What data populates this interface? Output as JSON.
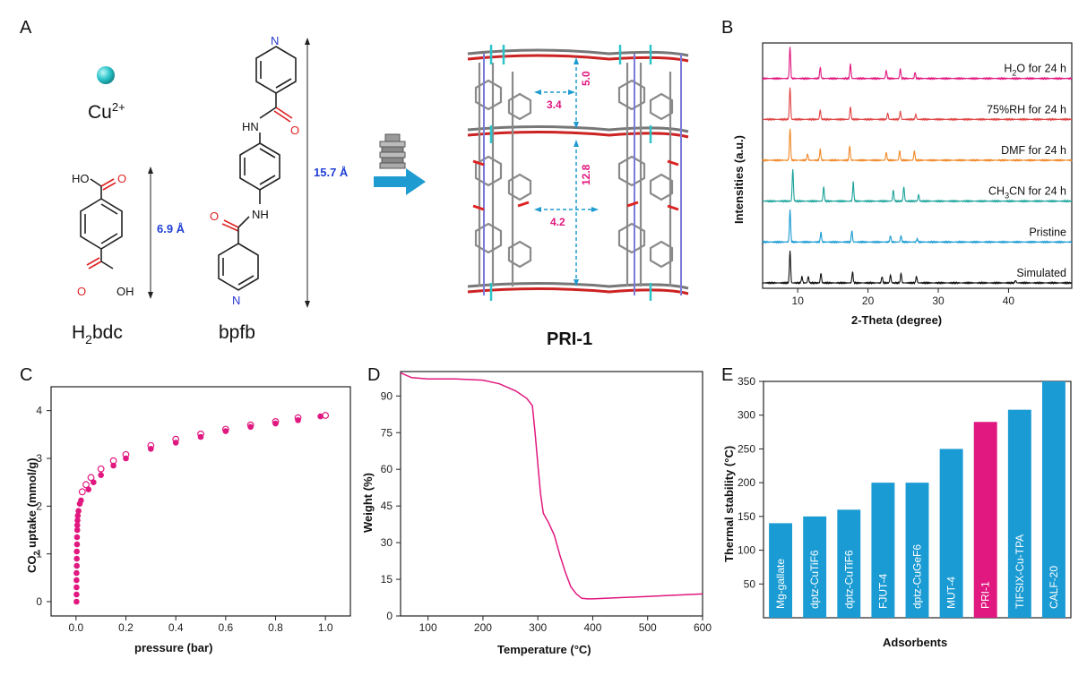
{
  "panels": {
    "A": "A",
    "B": "B",
    "C": "C",
    "D": "D",
    "E": "E"
  },
  "panel_a": {
    "cu_label": "Cu",
    "cu_charge": "2+",
    "h2bdc_prefix": "H",
    "h2bdc_sub": "2",
    "h2bdc_suffix": "bdc",
    "bpfb_label": "bpfb",
    "bdc_length": "6.9 Å",
    "bpfb_length": "15.7 Å",
    "product_label": "PRI-1",
    "dim_top_vertical": "5.0",
    "dim_top_horizontal": "3.4",
    "dim_mid_vertical": "12.8",
    "dim_mid_horizontal": "4.2",
    "atoms": {
      "ho": "HO",
      "o1": "O",
      "o2": "O",
      "oh": "OH",
      "n_top": "N",
      "hn": "HN",
      "o_up": "O",
      "o_low": "O",
      "nh": "NH",
      "n_bot": "N"
    },
    "colors": {
      "cu": "#2ac4c9",
      "dim_blue": "#1f3fd6",
      "dim_pink": "#e0187f",
      "arrow": "#1e9bd1"
    }
  },
  "chart_data": [
    {
      "panel": "B",
      "type": "line",
      "xlabel": "2-Theta (degree)",
      "ylabel": "Intensities (a.u.)",
      "xlim": [
        5,
        49
      ],
      "xticks": [
        10,
        20,
        30,
        40
      ],
      "series": [
        {
          "name": "H2O for 24 h",
          "label_main": "H",
          "label_sub": "2",
          "label_rest": "O for 24 h",
          "color": "#e0187f",
          "peaks": [
            [
              8.9,
              1.0
            ],
            [
              13.2,
              0.35
            ],
            [
              17.5,
              0.45
            ],
            [
              22.6,
              0.25
            ],
            [
              24.6,
              0.3
            ],
            [
              26.7,
              0.2
            ]
          ]
        },
        {
          "name": "75%RH for 24 h",
          "label_main": "75%RH for 24 h",
          "label_sub": "",
          "label_rest": "",
          "color": "#e04545",
          "peaks": [
            [
              8.9,
              1.0
            ],
            [
              13.2,
              0.3
            ],
            [
              17.5,
              0.4
            ],
            [
              22.8,
              0.2
            ],
            [
              24.6,
              0.25
            ],
            [
              26.8,
              0.15
            ]
          ]
        },
        {
          "name": "DMF for 24 h",
          "label_main": "DMF for 24 h",
          "label_sub": "",
          "label_rest": "",
          "color": "#f08a2a",
          "peaks": [
            [
              8.9,
              1.0
            ],
            [
              11.4,
              0.2
            ],
            [
              13.2,
              0.35
            ],
            [
              17.4,
              0.45
            ],
            [
              22.6,
              0.25
            ],
            [
              24.5,
              0.3
            ],
            [
              26.6,
              0.3
            ]
          ]
        },
        {
          "name": "CH3CN for 24 h",
          "label_main": "CH",
          "label_sub": "3",
          "label_rest": "CN for 24 h",
          "color": "#1aa39a",
          "peaks": [
            [
              9.3,
              1.0
            ],
            [
              13.7,
              0.45
            ],
            [
              17.9,
              0.6
            ],
            [
              23.6,
              0.35
            ],
            [
              25.1,
              0.45
            ],
            [
              27.2,
              0.2
            ]
          ]
        },
        {
          "name": "Pristine",
          "label_main": "Pristine",
          "label_sub": "",
          "label_rest": "",
          "color": "#1b9bd3",
          "peaks": [
            [
              8.9,
              1.0
            ],
            [
              13.3,
              0.3
            ],
            [
              17.7,
              0.35
            ],
            [
              23.2,
              0.2
            ],
            [
              24.7,
              0.2
            ],
            [
              27.0,
              0.1
            ]
          ]
        },
        {
          "name": "Simulated",
          "label_main": "Simulated",
          "label_sub": "",
          "label_rest": "",
          "color": "#111111",
          "peaks": [
            [
              8.9,
              1.0
            ],
            [
              10.6,
              0.2
            ],
            [
              11.5,
              0.2
            ],
            [
              13.3,
              0.3
            ],
            [
              17.8,
              0.35
            ],
            [
              22.0,
              0.2
            ],
            [
              23.2,
              0.25
            ],
            [
              24.7,
              0.3
            ],
            [
              26.9,
              0.2
            ],
            [
              41.0,
              0.08
            ]
          ]
        }
      ]
    },
    {
      "panel": "C",
      "type": "scatter",
      "xlabel": "pressure (bar)",
      "ylabel_prefix": "CO",
      "ylabel_sub": "2",
      "ylabel_suffix": " uptake (mmol/g)",
      "xlim": [
        -0.1,
        1.1
      ],
      "ylim": [
        -0.3,
        4.5
      ],
      "xticks": [
        0.0,
        0.2,
        0.4,
        0.6,
        0.8,
        1.0
      ],
      "yticks": [
        0,
        1,
        2,
        3,
        4
      ],
      "color": "#e0187f",
      "adsorption": [
        [
          0.002,
          0.0
        ],
        [
          0.002,
          0.15
        ],
        [
          0.002,
          0.3
        ],
        [
          0.002,
          0.45
        ],
        [
          0.002,
          0.6
        ],
        [
          0.003,
          0.75
        ],
        [
          0.003,
          0.9
        ],
        [
          0.003,
          1.05
        ],
        [
          0.004,
          1.2
        ],
        [
          0.004,
          1.35
        ],
        [
          0.005,
          1.5
        ],
        [
          0.005,
          1.6
        ],
        [
          0.006,
          1.7
        ],
        [
          0.007,
          1.8
        ],
        [
          0.01,
          1.9
        ],
        [
          0.015,
          2.05
        ],
        [
          0.02,
          2.12
        ],
        [
          0.05,
          2.35
        ],
        [
          0.07,
          2.5
        ],
        [
          0.1,
          2.65
        ],
        [
          0.15,
          2.85
        ],
        [
          0.2,
          3.0
        ],
        [
          0.3,
          3.2
        ],
        [
          0.4,
          3.33
        ],
        [
          0.5,
          3.45
        ],
        [
          0.6,
          3.57
        ],
        [
          0.7,
          3.66
        ],
        [
          0.8,
          3.73
        ],
        [
          0.89,
          3.8
        ],
        [
          0.98,
          3.88
        ]
      ],
      "desorption": [
        [
          0.025,
          2.3
        ],
        [
          0.04,
          2.45
        ],
        [
          0.06,
          2.6
        ],
        [
          0.1,
          2.78
        ],
        [
          0.15,
          2.95
        ],
        [
          0.2,
          3.08
        ],
        [
          0.3,
          3.27
        ],
        [
          0.4,
          3.4
        ],
        [
          0.5,
          3.51
        ],
        [
          0.6,
          3.61
        ],
        [
          0.7,
          3.7
        ],
        [
          0.8,
          3.77
        ],
        [
          0.89,
          3.85
        ],
        [
          1.0,
          3.9
        ]
      ]
    },
    {
      "panel": "D",
      "type": "line",
      "xlabel": "Temperature (°C)",
      "ylabel": "Weight (%)",
      "xlim": [
        50,
        600
      ],
      "ylim": [
        0,
        100
      ],
      "xticks": [
        100,
        200,
        300,
        400,
        500,
        600
      ],
      "yticks": [
        0,
        15,
        30,
        45,
        60,
        75,
        90
      ],
      "color": "#e0187f",
      "x": [
        50,
        70,
        100,
        150,
        200,
        230,
        260,
        280,
        290,
        295,
        300,
        305,
        310,
        320,
        330,
        340,
        350,
        360,
        370,
        380,
        390,
        400,
        450,
        500,
        550,
        600
      ],
      "y": [
        99.5,
        97.5,
        97,
        97,
        96.5,
        95,
        92,
        89,
        86,
        75,
        62,
        50,
        42,
        38,
        33,
        25,
        18,
        12,
        9,
        7.2,
        7,
        7,
        7.5,
        8,
        8.5,
        9
      ]
    },
    {
      "panel": "E",
      "type": "bar",
      "xlabel": "Adsorbents",
      "ylabel": "Thermal stability (°C)",
      "ylim": [
        0,
        350
      ],
      "yticks": [
        50,
        100,
        150,
        200,
        250,
        300,
        350
      ],
      "categories": [
        "Mg-gallate",
        "dptz-CuTiF6",
        "dptz-CuTiF6",
        "FJUT-4",
        "dptz-CuGeF6",
        "MUT-4",
        "PRI-1",
        "TIFSIX-Cu-TPA",
        "CALF-20"
      ],
      "values": [
        140,
        150,
        160,
        200,
        200,
        250,
        290,
        308,
        350
      ],
      "colors": [
        "#1b9bd3",
        "#1b9bd3",
        "#1b9bd3",
        "#1b9bd3",
        "#1b9bd3",
        "#1b9bd3",
        "#e0187f",
        "#1b9bd3",
        "#1b9bd3"
      ]
    }
  ]
}
